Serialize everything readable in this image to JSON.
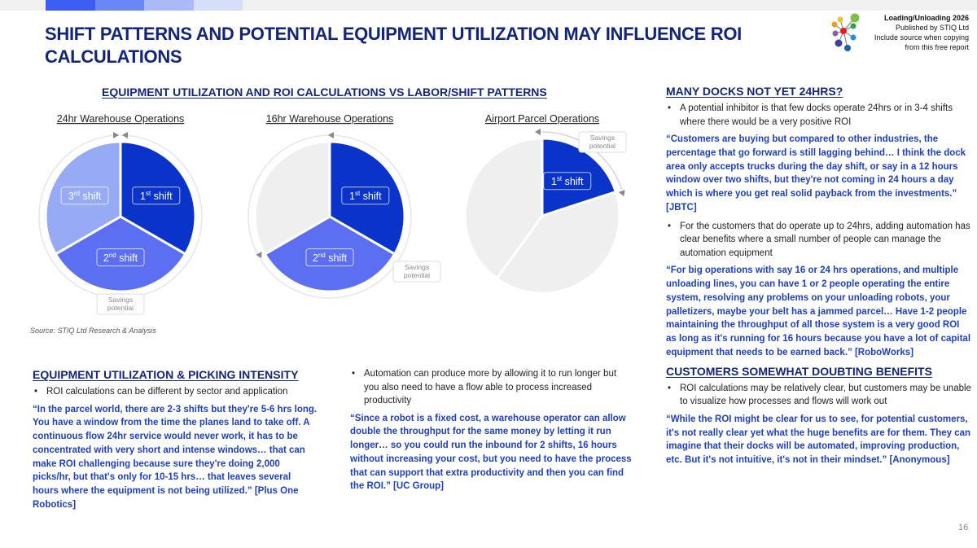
{
  "header": {
    "title": "SHIFT PATTERNS AND POTENTIAL EQUIPMENT UTILIZATION MAY INFLUENCE ROI CALCULATIONS",
    "accent_colors": [
      "#3d5cf5",
      "#6b86f7",
      "#aabaf9",
      "#d6defb"
    ],
    "publisher": {
      "line1": "Loading/Unloading 2026",
      "line2": "Published by STIQ Ltd",
      "line3": "Include source when copying",
      "line4": "from this free report"
    }
  },
  "charts_section": {
    "heading": "EQUIPMENT UTILIZATION AND ROI CALCULATIONS VS LABOR/SHIFT PATTERNS",
    "source": "Source: STIQ Ltd Research & Analysis",
    "savings_label_1": "Savings",
    "savings_label_2": "potential"
  },
  "chart_data": [
    {
      "type": "pie",
      "title": "24hr Warehouse Operations",
      "slices": [
        {
          "label": "1st shift",
          "sup": "st",
          "base": "1",
          "word": "shift",
          "share": 0.3333,
          "color": "#0a34c9"
        },
        {
          "label": "2nd shift",
          "sup": "nd",
          "base": "2",
          "word": "shift",
          "share": 0.3333,
          "color": "#5c6ef2"
        },
        {
          "label": "3rd shift",
          "sup": "rd",
          "base": "3",
          "word": "shift",
          "share": 0.3334,
          "color": "#97aaf6"
        }
      ]
    },
    {
      "type": "pie",
      "title": "16hr Warehouse Operations",
      "slices": [
        {
          "label": "1st shift",
          "sup": "st",
          "base": "1",
          "word": "shift",
          "share": 0.3333,
          "color": "#0a34c9"
        },
        {
          "label": "2nd shift",
          "sup": "nd",
          "base": "2",
          "word": "shift",
          "share": 0.3333,
          "color": "#5c6ef2"
        },
        {
          "label": "",
          "share": 0.3334,
          "color": "#efefef"
        }
      ]
    },
    {
      "type": "pie",
      "title": "Airport Parcel Operations",
      "slices": [
        {
          "label": "1st shift",
          "sup": "st",
          "base": "1",
          "word": "shift",
          "share": 0.2,
          "color": "#0a34c9"
        },
        {
          "label": "",
          "share": 0.4,
          "color": "#efefef"
        },
        {
          "label": "",
          "share": 0.4,
          "color": "#efefef"
        }
      ]
    }
  ],
  "left_section": {
    "heading": "EQUIPMENT UTILIZATION & PICKING INTENSITY",
    "bullet": "ROI calculations can be different by sector and application",
    "quote": "“In the parcel world, there are 2-3 shifts but they're 5-6 hrs long. You have a window from the time the planes land to take off. A continuous flow 24hr service would never work, it has to be concentrated with very short and intense windows… that can make ROI challenging because sure they're doing 2,000 picks/hr, but that's only for 10-15 hrs… that leaves several hours where the equipment is not being utilized.” [Plus One Robotics]"
  },
  "middle_section": {
    "bullet": "Automation can produce more by allowing it to run longer but you also need to have a flow able to process increased productivity",
    "quote": "“Since a robot is a fixed cost, a warehouse operator can allow double the throughput for the same money by letting it run longer… so you could run the inbound for 2 shifts, 16 hours without increasing your cost, but you need to have the process that can support that extra productivity and then you can find the ROI.” [UC Group]"
  },
  "right_section": {
    "heading1": "MANY DOCKS NOT YET 24HRS?",
    "bullet1": "A potential inhibitor is that few docks operate 24hrs or in 3-4 shifts where there would be a very positive ROI",
    "quote1": "“Customers are buying but compared to other industries, the percentage that go forward is still lagging behind… I think the dock area only accepts trucks during the day shift, or say in a 12 hours window over two shifts, but they're not coming in 24 hours a day which is where you get real solid payback from the investments.” [JBTC]",
    "bullet2": "For the customers that do operate up to 24hrs, adding automation has clear benefits where a small number of people can manage the automation equipment",
    "quote2": "“For big operations with say 16 or 24 hrs operations, and multiple unloading lines, you can have 1 or 2 people operating the entire system, resolving any problems on your unloading robots, your palletizers, maybe your belt has a jammed parcel… Have 1-2 people maintaining the throughput of all those system is a very good ROI as long as it's running for 16 hours because you have a lot of capital equipment that needs to be earned back.” [RoboWorks]",
    "heading2": "CUSTOMERS SOMEWHAT DOUBTING BENEFITS",
    "bullet3": "ROI calculations may be relatively clear, but customers may be unable to visualize how processes and flows will work out",
    "quote3": "“While the ROI might be clear for us to see, for potential customers, it's not really clear yet what the huge benefits are for them. They can imagine that their docks will be automated, improving production, etc. But it's not intuitive, it's not in their mindset.” [Anonymous]"
  },
  "page_number": "16"
}
